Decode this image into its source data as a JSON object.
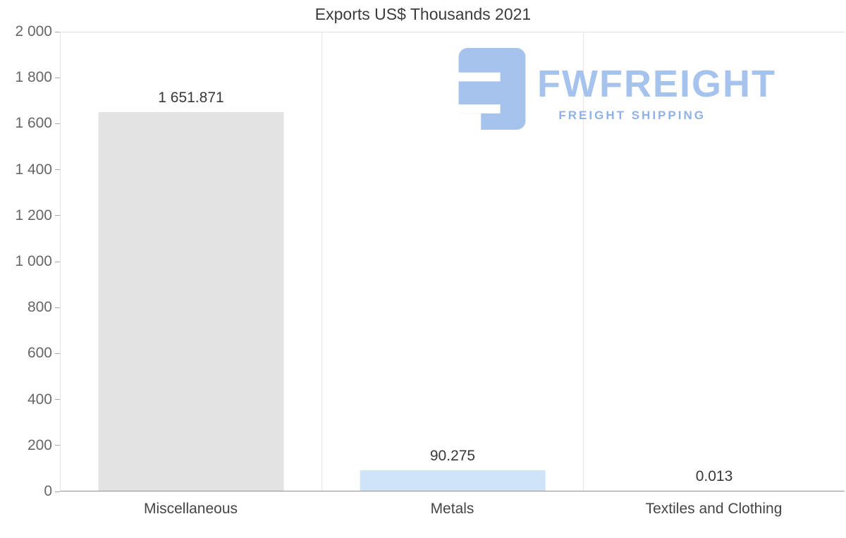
{
  "chart_data": {
    "type": "bar",
    "title": "Exports US$ Thousands 2021",
    "categories": [
      "Miscellaneous",
      "Metals",
      "Textiles and Clothing"
    ],
    "values": [
      1651.871,
      90.275,
      0.013
    ],
    "value_labels": [
      "1 651.871",
      "90.275",
      "0.013"
    ],
    "bar_colors": [
      "#e3e3e3",
      "#cfe4f8",
      "#cfe4f8"
    ],
    "xlabel": "",
    "ylabel": "",
    "ylim": [
      0,
      2000
    ],
    "ytick_interval": 200,
    "yticks": [
      "0",
      "200",
      "400",
      "600",
      "800",
      "1 000",
      "1 200",
      "1 400",
      "1 600",
      "1 800",
      "2 000"
    ],
    "grid": "vertical category separators, top boundary line only",
    "legend": "none"
  },
  "logo": {
    "brand": "FWFREIGHT",
    "tagline": "FREIGHT SHIPPING",
    "color": "#a6c3ee"
  },
  "colors": {
    "bar_gray": "#e3e3e3",
    "bar_blue": "#cfe4f8",
    "axis_line": "#8f8f8f",
    "gridline": "#e6e6e6",
    "text": "#3c3c3c",
    "logo_blue": "#a6c3ee"
  }
}
